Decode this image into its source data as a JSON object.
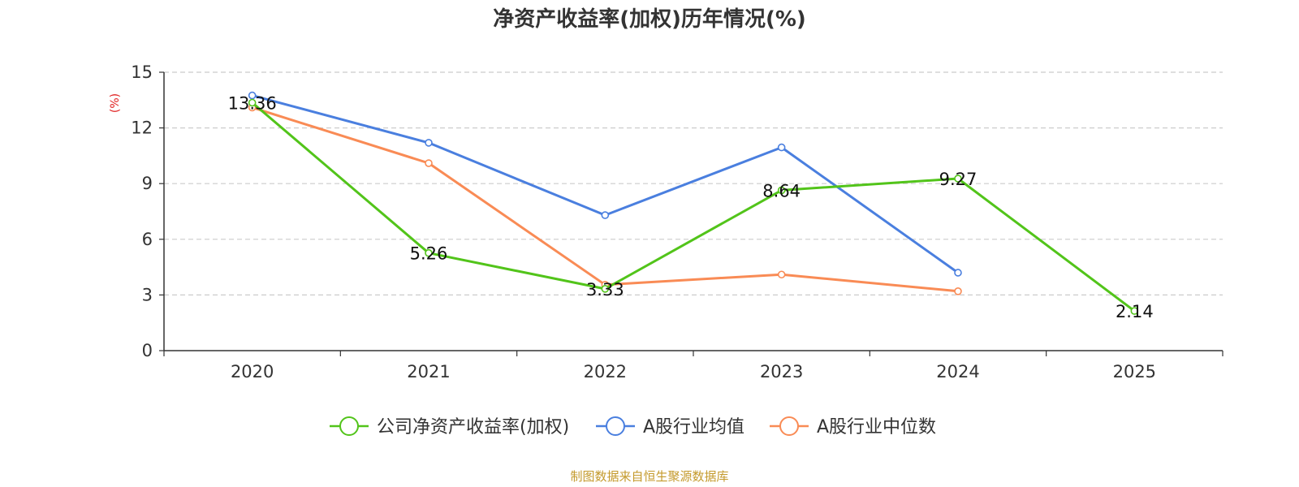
{
  "chart_data": {
    "type": "line",
    "title": "净资产收益率(加权)历年情况(%)",
    "y_unit": "(%)",
    "categories": [
      "2020",
      "2021",
      "2022",
      "2023",
      "2024",
      "2025"
    ],
    "ylim": [
      0,
      15
    ],
    "yticks": [
      "0",
      "3",
      "6",
      "9",
      "12",
      "15"
    ],
    "grid": true,
    "legend_position": "bottom",
    "series": [
      {
        "name": "公司净资产收益率(加权)",
        "color": "#52c41a",
        "values": [
          13.36,
          5.26,
          3.33,
          8.64,
          9.27,
          2.14
        ],
        "labels": [
          "13.36",
          "5.26",
          "3.33",
          "8.64",
          "9.27",
          "2.14"
        ]
      },
      {
        "name": "A股行业均值",
        "color": "#4a7fdf",
        "values": [
          13.75,
          11.2,
          7.3,
          10.95,
          4.2,
          null
        ]
      },
      {
        "name": "A股行业中位数",
        "color": "#f98b55",
        "values": [
          13.1,
          10.1,
          3.55,
          4.1,
          3.2,
          null
        ]
      }
    ]
  },
  "source": "制图数据来自恒生聚源数据库"
}
